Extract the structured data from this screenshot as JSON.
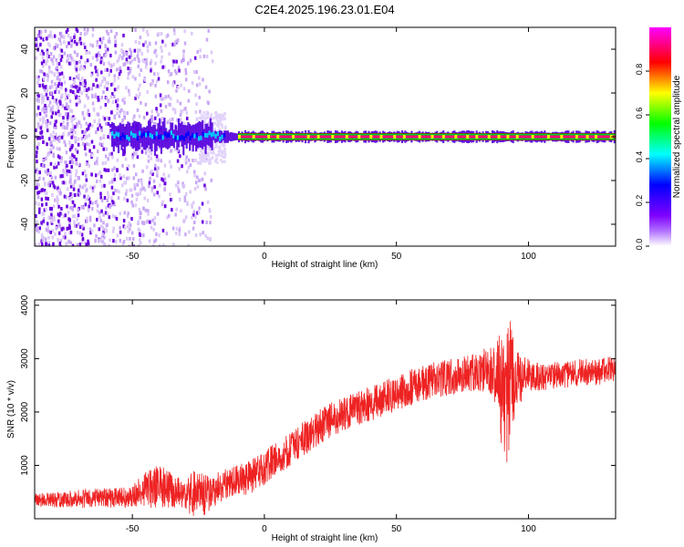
{
  "figure": {
    "title": "C2E4.2025.196.23.01.E04"
  },
  "chart_data": [
    {
      "type": "heatmap",
      "title": "C2E4.2025.196.23.01.E04",
      "xlabel": "Height of straight line (km)",
      "ylabel": "Frequency (Hz)",
      "xlim": [
        -87,
        133
      ],
      "ylim": [
        -50,
        50
      ],
      "x_ticks": [
        -50,
        0,
        50,
        100
      ],
      "y_ticks": [
        -40,
        -20,
        0,
        20,
        40
      ],
      "grid": false,
      "colorbar": {
        "label": "Normalized spectral amplitude",
        "range": [
          0,
          1
        ],
        "ticks": [
          "0.0",
          "0.2",
          "0.4",
          "0.6",
          "0.8"
        ],
        "colormap": [
          "#ffffff",
          "#7f00ff",
          "#0000ff",
          "#00ffff",
          "#00ff00",
          "#ffff00",
          "#ff0000",
          "#ff00ff"
        ]
      },
      "features": {
        "noise_region_x": [
          -87,
          -20
        ],
        "line_frequency_hz": 0,
        "strong_line_from_x": -10
      }
    },
    {
      "type": "line",
      "xlabel": "Height of straight line (km)",
      "ylabel": "SNR (10 * v/v)",
      "xlim": [
        -87,
        133
      ],
      "ylim": [
        0,
        4100
      ],
      "x_ticks": [
        -50,
        0,
        50,
        100
      ],
      "y_ticks": [
        1000,
        2000,
        3000,
        4000
      ],
      "grid": false,
      "color": "#ee2222",
      "series": [
        {
          "x": [
            -87,
            -80,
            -70,
            -60,
            -50,
            -45,
            -40,
            -35,
            -30,
            -27,
            -25,
            -22,
            -20,
            -15,
            -10,
            -5,
            0,
            5,
            10,
            15,
            20,
            25,
            30,
            35,
            40,
            45,
            50,
            55,
            60,
            65,
            70,
            75,
            80,
            85,
            88,
            90,
            92,
            95,
            97,
            100,
            105,
            110,
            115,
            120,
            125,
            133
          ],
          "y": [
            350,
            350,
            370,
            390,
            420,
            550,
            600,
            550,
            450,
            450,
            500,
            400,
            500,
            650,
            700,
            800,
            950,
            1150,
            1300,
            1500,
            1700,
            1850,
            1950,
            2050,
            2150,
            2250,
            2350,
            2450,
            2550,
            2600,
            2650,
            2700,
            2750,
            2800,
            2650,
            2500,
            2400,
            2700,
            2650,
            2700,
            2650,
            2700,
            2700,
            2750,
            2750,
            2800
          ],
          "noise_amplitude": [
            120,
            150,
            170,
            190,
            200,
            350,
            400,
            350,
            250,
            450,
            350,
            450,
            300,
            300,
            300,
            320,
            320,
            320,
            330,
            330,
            330,
            330,
            330,
            330,
            330,
            330,
            330,
            340,
            340,
            340,
            340,
            340,
            350,
            450,
            700,
            1200,
            1500,
            700,
            500,
            300,
            250,
            250,
            250,
            250,
            250,
            250
          ]
        }
      ]
    }
  ]
}
